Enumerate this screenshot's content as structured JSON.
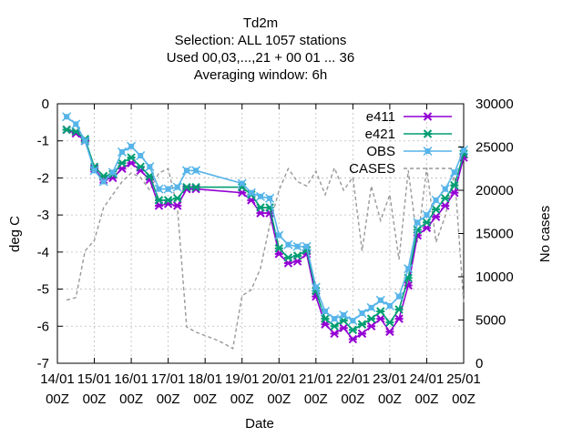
{
  "chart_data": {
    "type": "line",
    "title_lines": [
      "Td2m",
      "Selection: ALL   1057 stations",
      "Used  00,03,...,21  + 00 01 ... 36",
      "Averaging window:  6h"
    ],
    "xlabel": "Date",
    "ylabel": "deg C",
    "y2label": "No cases",
    "x_ticks": [
      {
        "day": 0,
        "line1": "14/01",
        "line2": "00Z"
      },
      {
        "day": 1,
        "line1": "15/01",
        "line2": "00Z"
      },
      {
        "day": 2,
        "line1": "16/01",
        "line2": "00Z"
      },
      {
        "day": 3,
        "line1": "17/01",
        "line2": "00Z"
      },
      {
        "day": 4,
        "line1": "18/01",
        "line2": "00Z"
      },
      {
        "day": 5,
        "line1": "19/01",
        "line2": "00Z"
      },
      {
        "day": 6,
        "line1": "20/01",
        "line2": "00Z"
      },
      {
        "day": 7,
        "line1": "21/01",
        "line2": "00Z"
      },
      {
        "day": 8,
        "line1": "22/01",
        "line2": "00Z"
      },
      {
        "day": 9,
        "line1": "23/01",
        "line2": "00Z"
      },
      {
        "day": 10,
        "line1": "24/01",
        "line2": "00Z"
      },
      {
        "day": 11,
        "line1": "25/01",
        "line2": "00Z"
      }
    ],
    "x_unit_note": "x values are days after 14/01 00Z",
    "xlim": [
      0,
      11
    ],
    "ylim": [
      -7,
      0
    ],
    "y_ticks": [
      0,
      -1,
      -2,
      -3,
      -4,
      -5,
      -6,
      -7
    ],
    "y2lim": [
      0,
      30000
    ],
    "y2_ticks": [
      0,
      5000,
      10000,
      15000,
      20000,
      25000,
      30000
    ],
    "legend_position": "top-right",
    "series": [
      {
        "name": "e411",
        "color": "#9400d3",
        "axis": "left",
        "marker": "cross",
        "x": [
          0.25,
          0.5,
          0.75,
          1.0,
          1.25,
          1.5,
          1.75,
          2.0,
          2.25,
          2.5,
          2.75,
          3.0,
          3.25,
          3.5,
          3.75,
          5.0,
          5.25,
          5.5,
          5.75,
          6.0,
          6.25,
          6.5,
          6.75,
          7.0,
          7.25,
          7.5,
          7.75,
          8.0,
          8.25,
          8.5,
          8.75,
          9.0,
          9.25,
          9.5,
          9.75,
          10.0,
          10.25,
          10.5,
          10.75,
          11.0
        ],
        "y": [
          -0.7,
          -0.8,
          -1.0,
          -1.75,
          -2.05,
          -2.0,
          -1.75,
          -1.6,
          -1.8,
          -2.05,
          -2.75,
          -2.7,
          -2.75,
          -2.3,
          -2.3,
          -2.4,
          -2.6,
          -2.95,
          -2.95,
          -4.05,
          -4.3,
          -4.25,
          -4.05,
          -5.2,
          -5.95,
          -6.2,
          -6.05,
          -6.35,
          -6.2,
          -6.0,
          -5.8,
          -6.15,
          -5.8,
          -4.9,
          -3.55,
          -3.35,
          -3.05,
          -2.75,
          -2.4,
          -1.45
        ]
      },
      {
        "name": "e421",
        "color": "#009e73",
        "axis": "left",
        "marker": "cross",
        "x": [
          0.25,
          0.5,
          0.75,
          1.0,
          1.25,
          1.5,
          1.75,
          2.0,
          2.25,
          2.5,
          2.75,
          3.0,
          3.25,
          3.5,
          3.75,
          5.0,
          5.25,
          5.5,
          5.75,
          6.0,
          6.25,
          6.5,
          6.75,
          7.0,
          7.25,
          7.5,
          7.75,
          8.0,
          8.25,
          8.5,
          8.75,
          9.0,
          9.25,
          9.5,
          9.75,
          10.0,
          10.25,
          10.5,
          10.75,
          11.0
        ],
        "y": [
          -0.7,
          -0.75,
          -0.95,
          -1.7,
          -1.95,
          -1.9,
          -1.6,
          -1.45,
          -1.7,
          -1.95,
          -2.6,
          -2.6,
          -2.55,
          -2.25,
          -2.25,
          -2.25,
          -2.45,
          -2.8,
          -2.8,
          -3.9,
          -4.15,
          -4.1,
          -3.95,
          -5.05,
          -5.8,
          -6.0,
          -5.85,
          -6.1,
          -5.95,
          -5.8,
          -5.6,
          -5.9,
          -5.55,
          -4.7,
          -3.4,
          -3.2,
          -2.85,
          -2.55,
          -2.2,
          -1.35
        ]
      },
      {
        "name": "OBS",
        "color": "#56b4e9",
        "axis": "left",
        "marker": "square",
        "x": [
          0.25,
          0.5,
          0.75,
          1.0,
          1.25,
          1.5,
          1.75,
          2.0,
          2.25,
          2.5,
          2.75,
          3.0,
          3.25,
          3.5,
          3.75,
          5.0,
          5.25,
          5.5,
          5.75,
          6.0,
          6.25,
          6.5,
          6.75,
          7.0,
          7.25,
          7.5,
          7.75,
          8.0,
          8.25,
          8.5,
          8.75,
          9.0,
          9.25,
          9.5,
          9.75,
          10.0,
          10.25,
          10.5,
          10.75,
          11.0
        ],
        "y": [
          -0.35,
          -0.55,
          -1.0,
          -1.8,
          -2.1,
          -1.85,
          -1.3,
          -1.15,
          -1.4,
          -1.7,
          -2.3,
          -2.3,
          -2.25,
          -1.8,
          -1.8,
          -2.15,
          -2.4,
          -2.5,
          -2.55,
          -3.55,
          -3.8,
          -3.85,
          -3.85,
          -4.95,
          -5.6,
          -5.8,
          -5.7,
          -5.85,
          -5.65,
          -5.5,
          -5.3,
          -5.45,
          -5.2,
          -4.45,
          -3.2,
          -3.0,
          -2.6,
          -2.3,
          -1.85,
          -1.25
        ]
      },
      {
        "name": "CASES",
        "color": "#999999",
        "axis": "right",
        "dashed": true,
        "x": [
          0.25,
          0.5,
          0.75,
          1.0,
          1.25,
          1.5,
          1.75,
          2.0,
          2.25,
          2.5,
          2.75,
          3.0,
          3.25,
          3.5,
          3.75,
          4.0,
          4.25,
          4.5,
          4.75,
          5.0,
          5.25,
          5.5,
          5.75,
          6.0,
          6.25,
          6.5,
          6.75,
          7.0,
          7.25,
          7.5,
          7.75,
          8.0,
          8.25,
          8.5,
          8.75,
          9.0,
          9.25,
          9.5,
          9.75,
          10.0,
          10.25,
          10.5,
          10.75,
          11.0
        ],
        "y": [
          7300,
          7600,
          13000,
          14200,
          18000,
          19500,
          21000,
          22000,
          21500,
          20000,
          22000,
          22500,
          18000,
          4200,
          3600,
          3200,
          2800,
          2300,
          1700,
          7800,
          8500,
          11000,
          16000,
          20000,
          22500,
          21000,
          20500,
          22200,
          19500,
          22600,
          20000,
          21500,
          13000,
          20500,
          16500,
          19500,
          12000,
          22300,
          14000,
          22600,
          14000,
          17000,
          22000,
          7000
        ]
      }
    ]
  }
}
